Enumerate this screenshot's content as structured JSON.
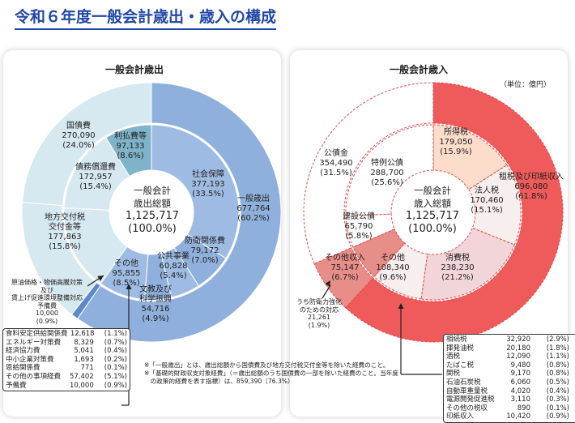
{
  "title": "令和６年度一般会計歳出・歳入の構成",
  "unit": "（単位：億円）",
  "chart_data": [
    {
      "type": "donut",
      "title": "一般会計歳出",
      "center": [
        "一般会計",
        "歳出総額",
        "1,125,717",
        "(100.0%)"
      ],
      "inner_ring": [
        {
          "name": "社会保障",
          "value": 377193,
          "pct": "33.5%",
          "color": "#9ebce3"
        },
        {
          "name": "防衛関係費",
          "value": 79172,
          "pct": "7.0%",
          "color": "#8fb0dc"
        },
        {
          "name": "公共事業",
          "value": 60828,
          "pct": "5.4%",
          "color": "#9ebce3"
        },
        {
          "name": "文教及び科学振興",
          "value": 54716,
          "pct": "4.9%",
          "color": "#8fb0dc"
        },
        {
          "name": "その他",
          "value": 95855,
          "pct": "8.5%",
          "color": "#9ebce3"
        },
        {
          "name": "地方交付税交付金等",
          "value": 177863,
          "pct": "15.8%",
          "color": "#d6e8f0"
        },
        {
          "name": "債務償還費",
          "value": 172957,
          "pct": "15.4%",
          "color": "#d6e8f0"
        },
        {
          "name": "利払費等",
          "value": 97133,
          "pct": "8.6%",
          "color": "#7fb3c9"
        }
      ],
      "outer_ring": [
        {
          "name": "一般歳出",
          "value": 677764,
          "pct": "60.2%",
          "color": "#8fb0dc"
        },
        {
          "name": "原油価格・物価高騰対策及び賃上げ促進環境整備対応予備費",
          "value": 10000,
          "pct": "0.9%",
          "color": "#5b8ac8"
        },
        {
          "name": "地方交付税交付金等",
          "value": 177863,
          "pct": "15.8%",
          "color": "#d6e8f0"
        },
        {
          "name": "国債費",
          "value": 270090,
          "pct": "24.0%",
          "color": "#d6e8f0"
        }
      ],
      "labels": {
        "shakai": [
          "社会保障",
          "377,193",
          "(33.5%)"
        ],
        "ippan": [
          "一般歳出",
          "677,764",
          "(60.2%)"
        ],
        "boei": [
          "防衛関係費",
          "79,172",
          "(7.0%)"
        ],
        "koukyo": [
          "公共事業",
          "60,828",
          "(5.4%)"
        ],
        "bunkyo": [
          "文教及び",
          "科学振興",
          "54,716",
          "(4.9%)"
        ],
        "sonota": [
          "その他",
          "95,855",
          "(8.5%)"
        ],
        "chiho": [
          "地方交付税",
          "交付金等",
          "177,863",
          "(15.8%)"
        ],
        "saimu": [
          "債務償還費",
          "172,957",
          "(15.4%)"
        ],
        "kokusai": [
          "国債費",
          "270,090",
          "(24.0%)"
        ],
        "ribarai": [
          "利払費等",
          "97,133",
          "(8.6%)"
        ],
        "genyu": [
          "原油価格・物価高騰対策",
          "及び",
          "賃上げ促進環境整備対応",
          "予備費",
          "10,000",
          "(0.9%)"
        ]
      },
      "breakdown": [
        [
          "食料安定供給関係費",
          "12,618",
          "(1.1%)"
        ],
        [
          "エネルギー対策費",
          "8,329",
          "(0.7%)"
        ],
        [
          "経済協力費",
          "5,041",
          "(0.4%)"
        ],
        [
          "中小企業対策費",
          "1,693",
          "(0.2%)"
        ],
        [
          "恩給関係費",
          "771",
          "(0.1%)"
        ],
        [
          "その他の事項経費",
          "57,402",
          "(5.1%)"
        ],
        [
          "予備費",
          "10,000",
          "(0.9%)"
        ]
      ]
    },
    {
      "type": "donut",
      "title": "一般会計歳入",
      "center": [
        "一般会計",
        "歳入総額",
        "1,125,717",
        "(100.0%)"
      ],
      "inner_ring": [
        {
          "name": "所得税",
          "value": 179050,
          "pct": "15.9%",
          "color": "#fcdcca"
        },
        {
          "name": "法人税",
          "value": 170460,
          "pct": "15.1%",
          "color": "#f7eeee"
        },
        {
          "name": "消費税",
          "value": 238230,
          "pct": "21.2%",
          "color": "#f2d5d8"
        },
        {
          "name": "その他",
          "value": 108340,
          "pct": "9.6%",
          "color": "#f7eeee"
        },
        {
          "name": "その他収入",
          "value": 75147,
          "pct": "6.7%",
          "color": "#e88e89"
        },
        {
          "name": "建設公債",
          "value": 65790,
          "pct": "5.8%",
          "color": "#ffffff"
        },
        {
          "name": "特例公債",
          "value": 288700,
          "pct": "25.6%",
          "color": "#ffffff"
        }
      ],
      "outer_ring": [
        {
          "name": "租税及び印紙収入",
          "value": 696080,
          "pct": "61.8%",
          "color": "#ef5a5a"
        },
        {
          "name": "その他収入",
          "value": 75147,
          "pct": "6.7%",
          "color": "#e88e89"
        },
        {
          "name": "公債金",
          "value": 354490,
          "pct": "31.5%",
          "color": "#ffffff"
        }
      ],
      "labels": {
        "shotoku": [
          "所得税",
          "179,050",
          "(15.9%)"
        ],
        "sozei": [
          "租税及び印紙収入",
          "696,080",
          "(61.8%)"
        ],
        "hojin": [
          "法人税",
          "170,460",
          "(15.1%)"
        ],
        "shohi": [
          "消費税",
          "238,230",
          "(21.2%)"
        ],
        "sonota": [
          "その他",
          "108,340",
          "(9.6%)"
        ],
        "sonotashu": [
          "その他収入",
          "75,147",
          "(6.7%)"
        ],
        "kensetsu": [
          "建設公債",
          "65,790",
          "(5.8%)"
        ],
        "tokurei": [
          "特例公債",
          "288,700",
          "(25.6%)"
        ],
        "kosai": [
          "公債金",
          "354,490",
          "(31.5%)"
        ],
        "boei": [
          "うち防衛力強化",
          "のための対応",
          "21,261",
          "(1.9%)"
        ]
      },
      "breakdown": [
        [
          "相続税",
          "32,920",
          "(2.9%)"
        ],
        [
          "揮発油税",
          "20,180",
          "(1.8%)"
        ],
        [
          "酒税",
          "12,090",
          "(1.1%)"
        ],
        [
          "たばこ税",
          "9,480",
          "(0.8%)"
        ],
        [
          "関税",
          "9,170",
          "(0.8%)"
        ],
        [
          "石油石炭税",
          "6,060",
          "(0.5%)"
        ],
        [
          "自動車重量税",
          "4,020",
          "(0.4%)"
        ],
        [
          "電源開発促進税",
          "3,110",
          "(0.3%)"
        ],
        [
          "その他の税収",
          "890",
          "(0.1%)"
        ],
        [
          "印紙収入",
          "10,420",
          "(0.9%)"
        ]
      ]
    }
  ],
  "footnotes": [
    "※「一般歳出」とは、歳出総額から国債費及び地方交付税交付金等を除いた経費のこと。",
    "※「基礎的財政収支対象経費」（＝歳出総額のうち国債費の一部を除いた経費のこと。当年度",
    "　の政策的経費を表す指標）は、859,390（76.3%）"
  ]
}
